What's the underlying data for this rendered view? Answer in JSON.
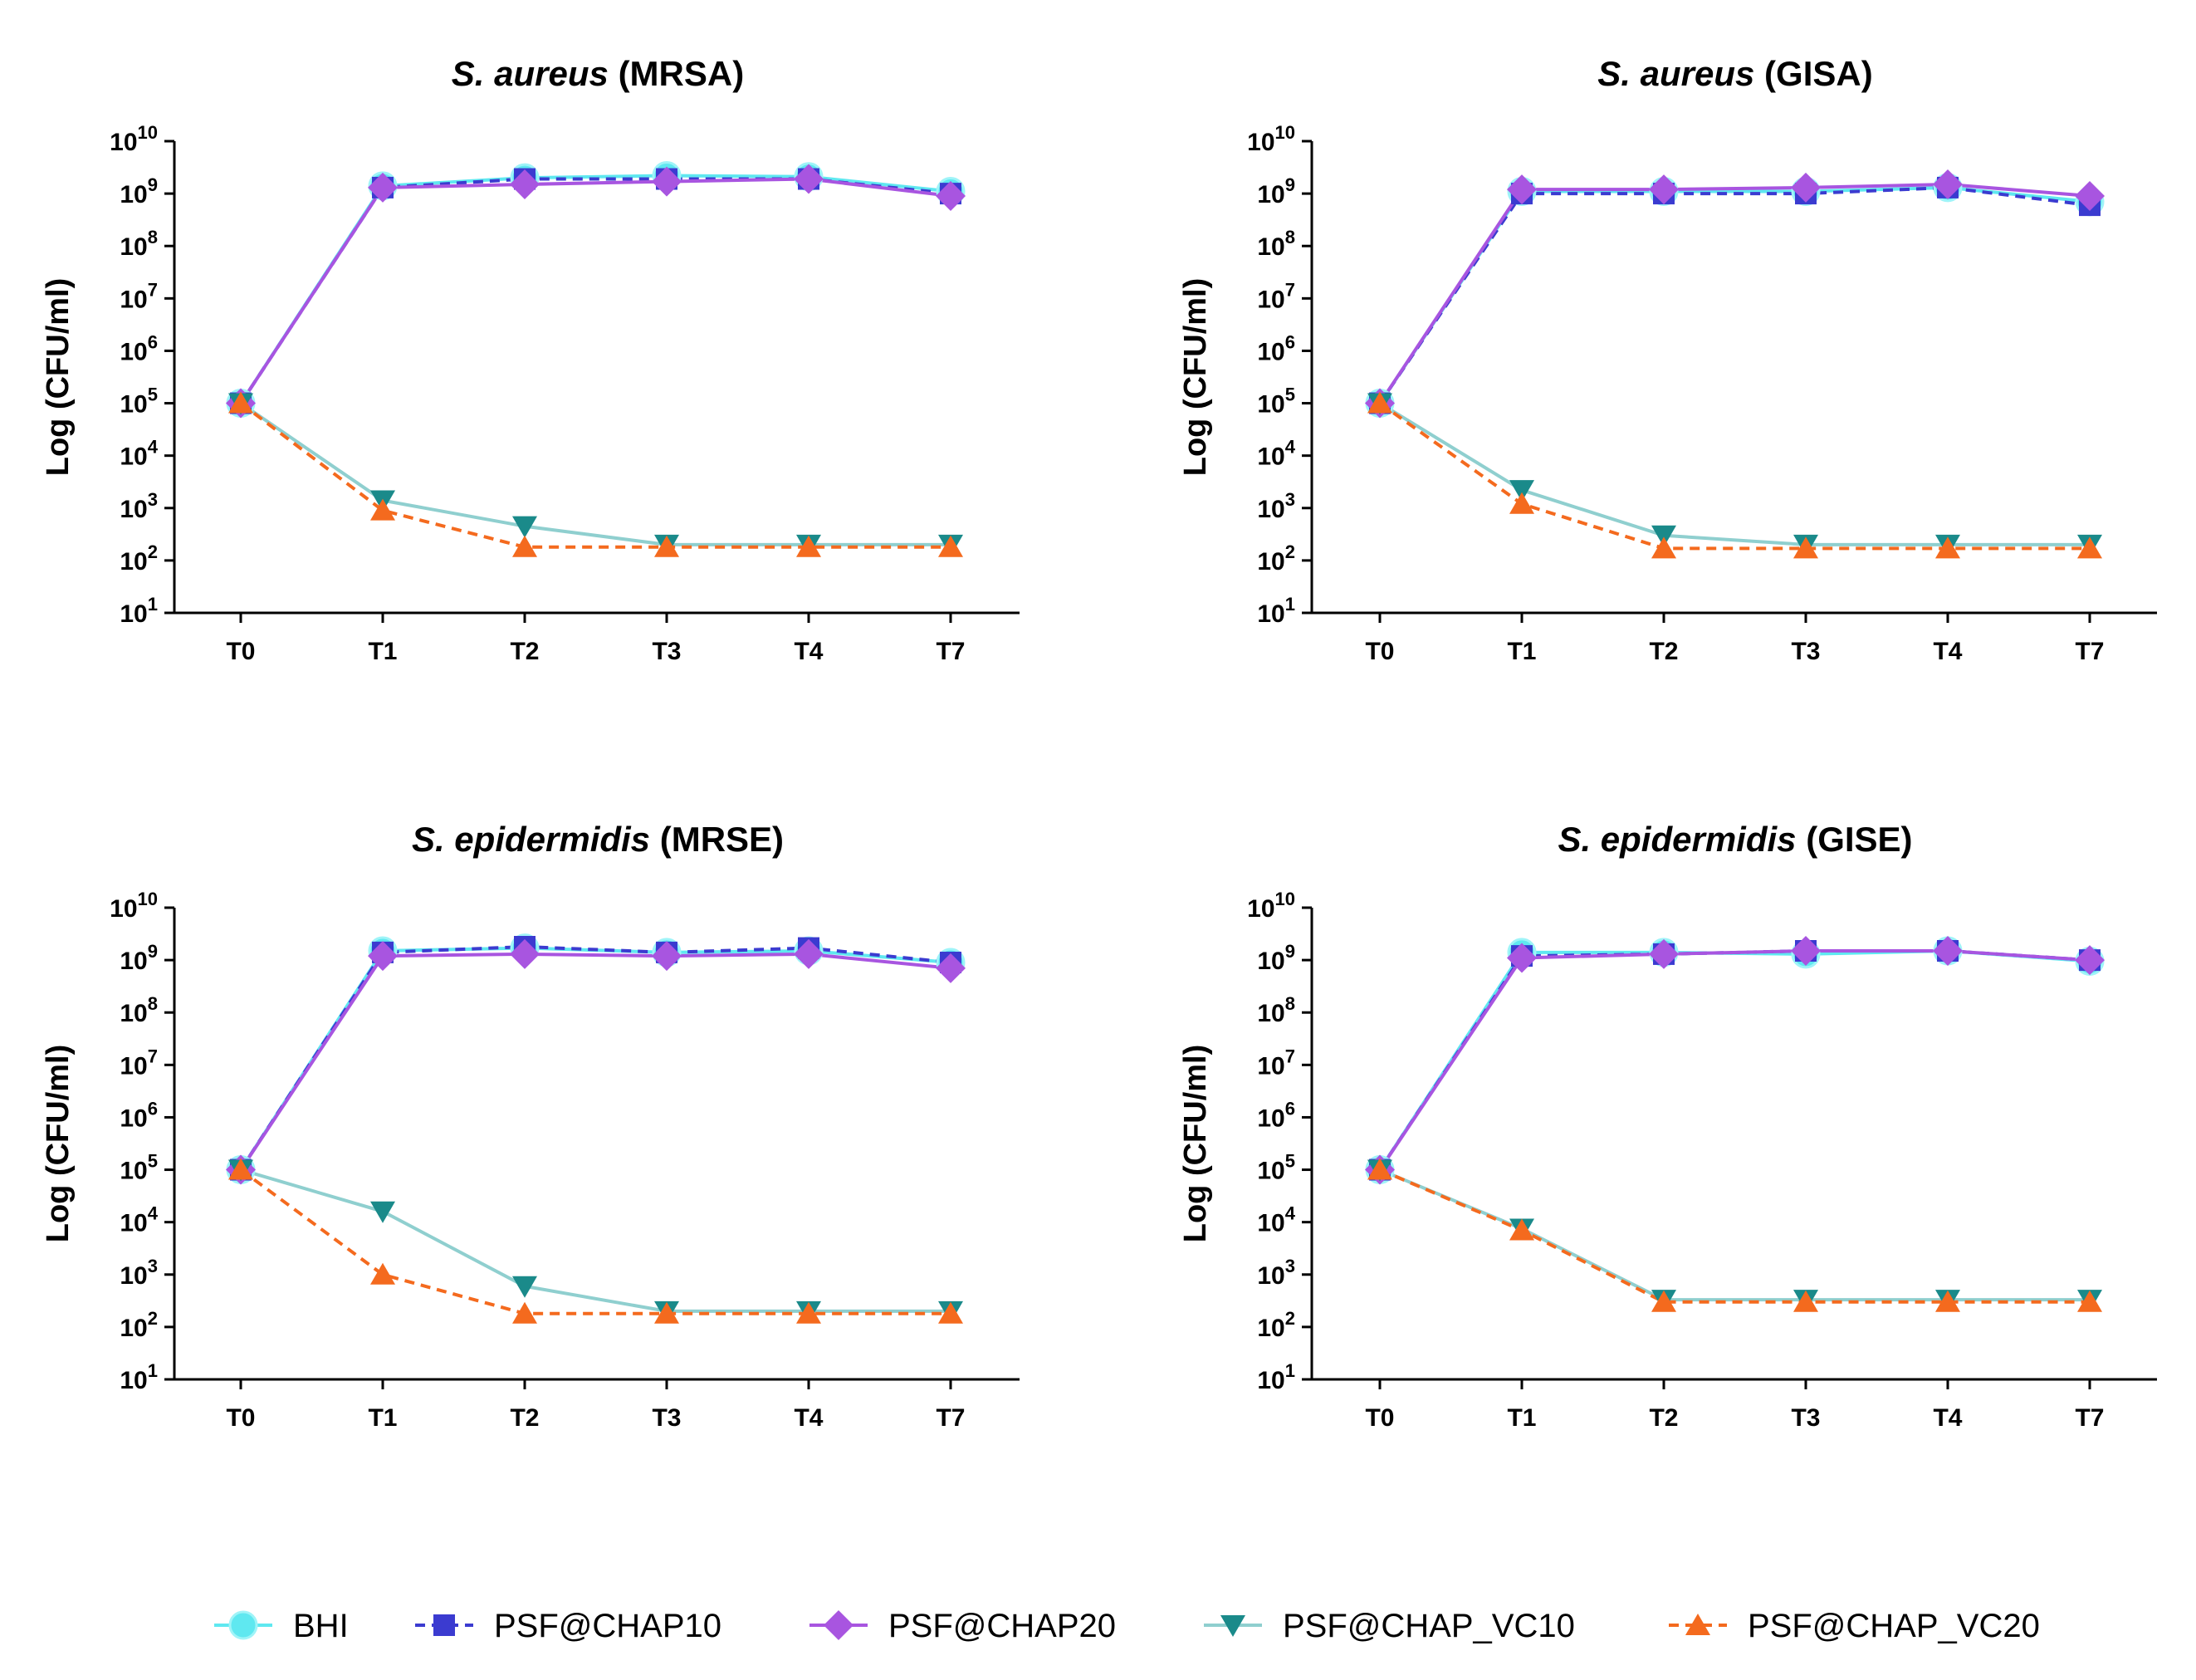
{
  "chart_data": [
    {
      "type": "line",
      "title_italic": "S. aureus",
      "title_rest": "(MRSA)",
      "ylabel": "Log (CFU/ml)",
      "yscale": "log",
      "ylim": [
        10,
        10000000000
      ],
      "yticks": [
        {
          "base": "10",
          "exp": "1"
        },
        {
          "base": "10",
          "exp": "2"
        },
        {
          "base": "10",
          "exp": "3"
        },
        {
          "base": "10",
          "exp": "4"
        },
        {
          "base": "10",
          "exp": "5"
        },
        {
          "base": "10",
          "exp": "6"
        },
        {
          "base": "10",
          "exp": "7"
        },
        {
          "base": "10",
          "exp": "8"
        },
        {
          "base": "10",
          "exp": "9"
        },
        {
          "base": "10",
          "exp": "10"
        }
      ],
      "categories": [
        "T0",
        "T1",
        "T2",
        "T3",
        "T4",
        "T7"
      ],
      "series": [
        {
          "name": "BHI",
          "values": [
            100000,
            1400000000,
            2000000000,
            2200000000,
            2100000000,
            1100000000
          ]
        },
        {
          "name": "PSF@CHAP10",
          "values": [
            100000,
            1300000000,
            1900000000,
            1900000000,
            1900000000,
            1000000000
          ]
        },
        {
          "name": "PSF@CHAP20",
          "values": [
            100000,
            1300000000,
            1500000000,
            1700000000,
            1900000000,
            900000000
          ]
        },
        {
          "name": "PSF@CHAP_VC10",
          "values": [
            100000,
            1400,
            450,
            200,
            200,
            200
          ]
        },
        {
          "name": "PSF@CHAP_VC20",
          "values": [
            100000,
            900,
            180,
            180,
            180,
            180
          ]
        }
      ]
    },
    {
      "type": "line",
      "title_italic": "S. aureus",
      "title_rest": "(GISA)",
      "ylabel": "Log (CFU/ml)",
      "yscale": "log",
      "ylim": [
        10,
        10000000000
      ],
      "yticks": [
        {
          "base": "10",
          "exp": "1"
        },
        {
          "base": "10",
          "exp": "2"
        },
        {
          "base": "10",
          "exp": "3"
        },
        {
          "base": "10",
          "exp": "4"
        },
        {
          "base": "10",
          "exp": "5"
        },
        {
          "base": "10",
          "exp": "6"
        },
        {
          "base": "10",
          "exp": "7"
        },
        {
          "base": "10",
          "exp": "8"
        },
        {
          "base": "10",
          "exp": "9"
        },
        {
          "base": "10",
          "exp": "10"
        }
      ],
      "categories": [
        "T0",
        "T1",
        "T2",
        "T3",
        "T4",
        "T7"
      ],
      "series": [
        {
          "name": "BHI",
          "values": [
            100000,
            1100000000,
            1100000000,
            1100000000,
            1300000000,
            700000000
          ]
        },
        {
          "name": "PSF@CHAP10",
          "values": [
            100000,
            1000000000,
            1000000000,
            1000000000,
            1300000000,
            600000000
          ]
        },
        {
          "name": "PSF@CHAP20",
          "values": [
            100000,
            1200000000,
            1200000000,
            1300000000,
            1500000000,
            900000000
          ]
        },
        {
          "name": "PSF@CHAP_VC10",
          "values": [
            100000,
            2200,
            300,
            200,
            200,
            200
          ]
        },
        {
          "name": "PSF@CHAP_VC20",
          "values": [
            100000,
            1200,
            170,
            170,
            170,
            170
          ]
        }
      ]
    },
    {
      "type": "line",
      "title_italic": "S. epidermidis",
      "title_rest": "(MRSE)",
      "ylabel": "Log (CFU/ml)",
      "yscale": "log",
      "ylim": [
        10,
        10000000000
      ],
      "yticks": [
        {
          "base": "10",
          "exp": "1"
        },
        {
          "base": "10",
          "exp": "2"
        },
        {
          "base": "10",
          "exp": "3"
        },
        {
          "base": "10",
          "exp": "4"
        },
        {
          "base": "10",
          "exp": "5"
        },
        {
          "base": "10",
          "exp": "6"
        },
        {
          "base": "10",
          "exp": "7"
        },
        {
          "base": "10",
          "exp": "8"
        },
        {
          "base": "10",
          "exp": "9"
        },
        {
          "base": "10",
          "exp": "10"
        }
      ],
      "categories": [
        "T0",
        "T1",
        "T2",
        "T3",
        "T4",
        "T7"
      ],
      "series": [
        {
          "name": "BHI",
          "values": [
            100000,
            1500000000,
            1700000000,
            1400000000,
            1500000000,
            900000000
          ]
        },
        {
          "name": "PSF@CHAP10",
          "values": [
            100000,
            1400000000,
            1800000000,
            1400000000,
            1700000000,
            900000000
          ]
        },
        {
          "name": "PSF@CHAP20",
          "values": [
            100000,
            1200000000,
            1300000000,
            1200000000,
            1300000000,
            700000000
          ]
        },
        {
          "name": "PSF@CHAP_VC10",
          "values": [
            100000,
            16000,
            600,
            200,
            200,
            200
          ]
        },
        {
          "name": "PSF@CHAP_VC20",
          "values": [
            100000,
            1000,
            180,
            180,
            180,
            180
          ]
        }
      ]
    },
    {
      "type": "line",
      "title_italic": "S. epidermidis",
      "title_rest": "(GISE)",
      "ylabel": "Log (CFU/ml)",
      "yscale": "log",
      "ylim": [
        10,
        10000000000
      ],
      "yticks": [
        {
          "base": "10",
          "exp": "1"
        },
        {
          "base": "10",
          "exp": "2"
        },
        {
          "base": "10",
          "exp": "3"
        },
        {
          "base": "10",
          "exp": "4"
        },
        {
          "base": "10",
          "exp": "5"
        },
        {
          "base": "10",
          "exp": "6"
        },
        {
          "base": "10",
          "exp": "7"
        },
        {
          "base": "10",
          "exp": "8"
        },
        {
          "base": "10",
          "exp": "9"
        },
        {
          "base": "10",
          "exp": "10"
        }
      ],
      "categories": [
        "T0",
        "T1",
        "T2",
        "T3",
        "T4",
        "T7"
      ],
      "series": [
        {
          "name": "BHI",
          "values": [
            100000,
            1400000000,
            1400000000,
            1300000000,
            1500000000,
            950000000
          ]
        },
        {
          "name": "PSF@CHAP10",
          "values": [
            100000,
            1200000000,
            1300000000,
            1500000000,
            1500000000,
            1000000000
          ]
        },
        {
          "name": "PSF@CHAP20",
          "values": [
            100000,
            1100000000,
            1300000000,
            1500000000,
            1500000000,
            1000000000
          ]
        },
        {
          "name": "PSF@CHAP_VC10",
          "values": [
            100000,
            7500,
            330,
            330,
            330,
            330
          ]
        },
        {
          "name": "PSF@CHAP_VC20",
          "values": [
            100000,
            7000,
            300,
            300,
            300,
            300
          ]
        }
      ]
    }
  ],
  "legend": {
    "placement": "bottom",
    "items": [
      {
        "name": "BHI",
        "color": "#5fe8f0",
        "marker": "circle",
        "dash": "solid"
      },
      {
        "name": "PSF@CHAP10",
        "color": "#3b3bd0",
        "marker": "square",
        "dash": "dashed"
      },
      {
        "name": "PSF@CHAP20",
        "color": "#a855e0",
        "marker": "diamond",
        "dash": "solid"
      },
      {
        "name": "PSF@CHAP_VC10",
        "color": "#1a8a8a",
        "line_color": "#8fcfcf",
        "marker": "triangle-down",
        "dash": "solid"
      },
      {
        "name": "PSF@CHAP_VC20",
        "color": "#f46a1e",
        "marker": "triangle-up",
        "dash": "dashed"
      }
    ]
  }
}
